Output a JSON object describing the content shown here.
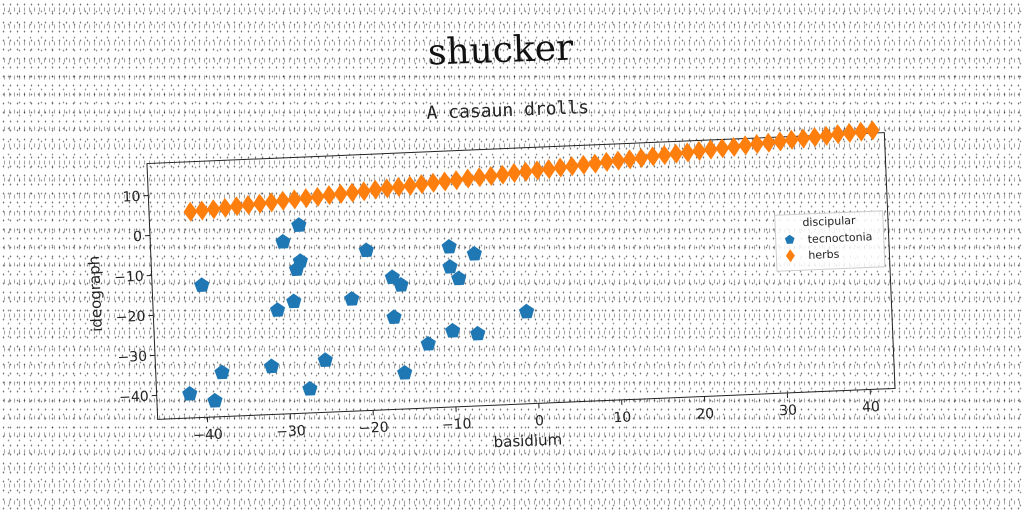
{
  "chart_data": {
    "type": "scatter",
    "title": "shucker",
    "subtitle": "A casaun drolls",
    "xlabel": "basidium",
    "ylabel": "ideograph",
    "xlim": [
      -46,
      43
    ],
    "ylim": [
      -46,
      18
    ],
    "xticks": [
      -40,
      -30,
      -20,
      -10,
      0,
      10,
      20,
      30,
      40
    ],
    "yticks": [
      -40,
      -30,
      -20,
      -10,
      0,
      10
    ],
    "grid": false,
    "legend": {
      "title": "discipular",
      "position": "right",
      "entries": [
        "tecnoctonia",
        "herbs"
      ]
    },
    "series": [
      {
        "name": "tecnoctonia",
        "marker": "pentagon",
        "color": "#1f77b4",
        "points": [
          [
            -42,
            -40
          ],
          [
            -40,
            -13
          ],
          [
            -39,
            -42
          ],
          [
            -38,
            -35
          ],
          [
            -32,
            -34
          ],
          [
            -31,
            -20
          ],
          [
            -30,
            -3
          ],
          [
            -29,
            -18
          ],
          [
            -28.5,
            -10
          ],
          [
            -28,
            -8
          ],
          [
            -28,
            1
          ],
          [
            -27.5,
            -40
          ],
          [
            -25.5,
            -33
          ],
          [
            -22,
            -18
          ],
          [
            -20,
            -6
          ],
          [
            -17,
            -23
          ],
          [
            -17,
            -13
          ],
          [
            -16,
            -15
          ],
          [
            -16,
            -37
          ],
          [
            -13,
            -30
          ],
          [
            -10,
            -6
          ],
          [
            -10,
            -11
          ],
          [
            -10,
            -27
          ],
          [
            -9,
            -14
          ],
          [
            -7,
            -8
          ],
          [
            -7,
            -28
          ],
          [
            -1,
            -23
          ]
        ]
      },
      {
        "name": "herbs",
        "marker": "diamond",
        "color": "#ff7f0e",
        "points": [
          [
            -41,
            5.5
          ],
          [
            -39.6,
            5.7
          ],
          [
            -38.2,
            5.9
          ],
          [
            -36.8,
            6.1
          ],
          [
            -35.4,
            6.4
          ],
          [
            -34,
            6.6
          ],
          [
            -32.6,
            6.8
          ],
          [
            -31.2,
            7.0
          ],
          [
            -29.8,
            7.3
          ],
          [
            -28.4,
            7.5
          ],
          [
            -27,
            7.7
          ],
          [
            -25.6,
            7.9
          ],
          [
            -24.2,
            8.2
          ],
          [
            -22.8,
            8.4
          ],
          [
            -21.4,
            8.6
          ],
          [
            -20,
            8.8
          ],
          [
            -18.6,
            9.1
          ],
          [
            -17.2,
            9.3
          ],
          [
            -15.8,
            9.5
          ],
          [
            -14.4,
            9.7
          ],
          [
            -13,
            10.0
          ],
          [
            -11.6,
            10.2
          ],
          [
            -10.2,
            10.4
          ],
          [
            -8.8,
            10.6
          ],
          [
            -7.4,
            10.9
          ],
          [
            -6,
            11.1
          ],
          [
            -4.6,
            11.3
          ],
          [
            -3.2,
            11.5
          ],
          [
            -1.8,
            11.8
          ],
          [
            -0.4,
            12.0
          ],
          [
            1,
            12.2
          ],
          [
            2.4,
            12.4
          ],
          [
            3.8,
            12.7
          ],
          [
            5.2,
            12.9
          ],
          [
            6.6,
            13.1
          ],
          [
            8,
            13.3
          ],
          [
            9.4,
            13.6
          ],
          [
            10.8,
            13.8
          ],
          [
            12.2,
            14.0
          ],
          [
            13.6,
            14.2
          ],
          [
            15,
            14.5
          ],
          [
            16.4,
            14.7
          ],
          [
            17.8,
            14.9
          ],
          [
            19.2,
            15.1
          ],
          [
            20.6,
            15.4
          ],
          [
            22,
            15.6
          ],
          [
            23.4,
            15.8
          ],
          [
            24.8,
            16.0
          ],
          [
            26.2,
            16.3
          ],
          [
            27.6,
            16.5
          ],
          [
            29,
            16.7
          ],
          [
            30.4,
            16.9
          ],
          [
            31.8,
            17.2
          ],
          [
            33.2,
            17.4
          ],
          [
            34.6,
            17.6
          ],
          [
            36,
            17.8
          ],
          [
            37.4,
            18.1
          ],
          [
            38.8,
            18.3
          ],
          [
            40.2,
            18.5
          ],
          [
            41.6,
            18.7
          ]
        ]
      }
    ]
  }
}
